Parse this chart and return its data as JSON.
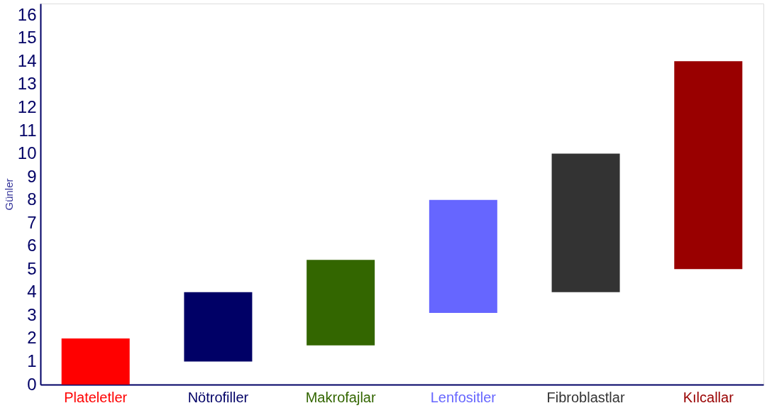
{
  "chart_data": {
    "type": "bar",
    "ylabel": "Günler",
    "categories": [
      "Plateletler",
      "Nötrofiller",
      "Makrofajlar",
      "Lenfositler",
      "Fibroblastlar",
      "Kılcallar"
    ],
    "base": [
      0,
      1,
      1.7,
      3.1,
      4,
      5
    ],
    "values": [
      2,
      3,
      3.7,
      4.9,
      6,
      9
    ],
    "colors": [
      "#ff0000",
      "#000066",
      "#336600",
      "#6666ff",
      "#333333",
      "#990000"
    ],
    "ylim": [
      0,
      16.5
    ],
    "yticks": [
      0,
      1,
      2,
      3,
      4,
      5,
      6,
      7,
      8,
      9,
      10,
      11,
      12,
      13,
      14,
      15,
      16
    ],
    "grid": false,
    "legend": false
  }
}
